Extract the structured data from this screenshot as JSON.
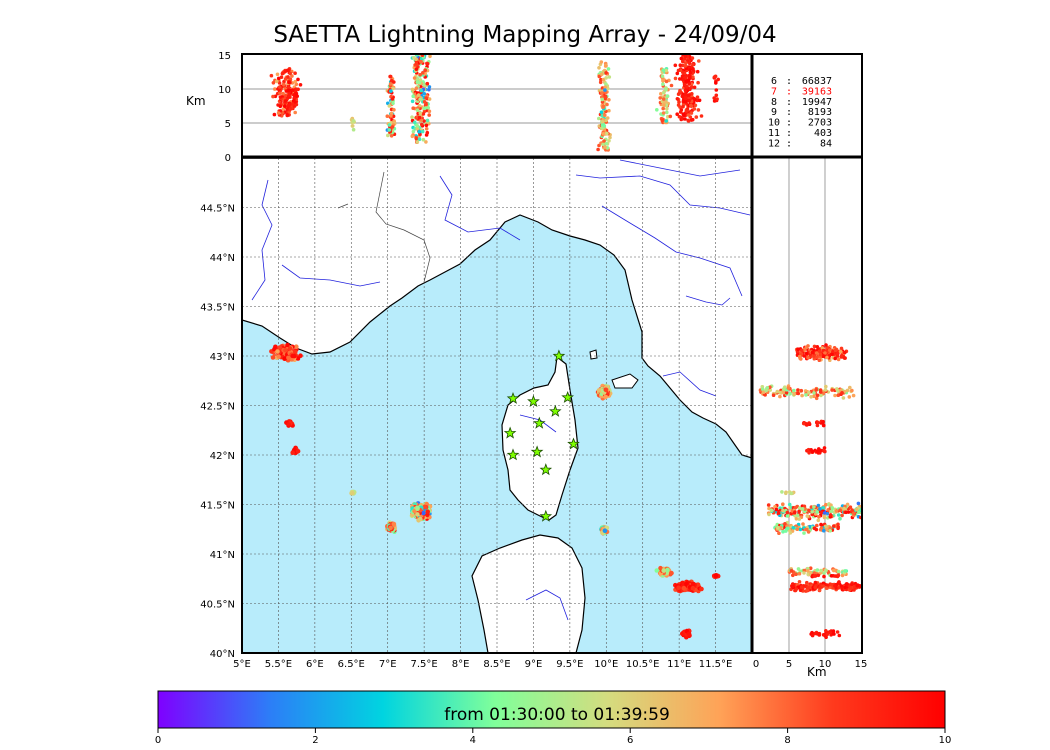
{
  "title": "SAETTA Lightning Mapping Array - 24/09/04",
  "colors": {
    "sea": "#b8ecfb",
    "river": "#2222dd",
    "border": "#444444",
    "coast": "#000000",
    "star": "#7fff00",
    "highlight": "#ff0000"
  },
  "chart_data": {
    "type": "scatter",
    "x_axis": {
      "label": "",
      "lim": [
        5,
        12
      ],
      "ticks": [
        "5°E",
        "5.5°E",
        "6°E",
        "6.5°E",
        "7°E",
        "7.5°E",
        "8°E",
        "8.5°E",
        "9°E",
        "9.5°E",
        "10°E",
        "10.5°E",
        "11°E",
        "11.5°E"
      ]
    },
    "y_axis": {
      "label": "",
      "lim": [
        40,
        45
      ],
      "ticks": [
        "40°N",
        "40.5°N",
        "41°N",
        "41.5°N",
        "42°N",
        "42.5°N",
        "43°N",
        "43.5°N",
        "44°N",
        "44.5°N"
      ]
    },
    "alt_axis": {
      "label": "Km",
      "lim": [
        0,
        15
      ],
      "ticks": [
        "0",
        "5",
        "10",
        "15"
      ]
    },
    "grid": true,
    "stations": [
      {
        "lon": 9.35,
        "lat": 43.0
      },
      {
        "lon": 8.72,
        "lat": 42.57
      },
      {
        "lon": 9.0,
        "lat": 42.54
      },
      {
        "lon": 9.47,
        "lat": 42.58
      },
      {
        "lon": 9.3,
        "lat": 42.44
      },
      {
        "lon": 9.08,
        "lat": 42.32
      },
      {
        "lon": 8.68,
        "lat": 42.22
      },
      {
        "lon": 9.55,
        "lat": 42.11
      },
      {
        "lon": 9.05,
        "lat": 42.03
      },
      {
        "lon": 8.72,
        "lat": 42.0
      },
      {
        "lon": 9.17,
        "lat": 41.85
      },
      {
        "lon": 9.17,
        "lat": 41.38
      }
    ],
    "clusters": [
      {
        "lon": 5.6,
        "lat": 43.03,
        "dlon": 0.22,
        "dlat": 0.1,
        "altmin": 6,
        "altmax": 13,
        "tmin": 6.5,
        "tmax": 10,
        "n": 140
      },
      {
        "lon": 5.66,
        "lat": 42.32,
        "dlon": 0.06,
        "dlat": 0.04,
        "altmin": 7,
        "altmax": 10,
        "tmin": 8.5,
        "tmax": 10,
        "n": 20
      },
      {
        "lon": 5.73,
        "lat": 42.04,
        "dlon": 0.07,
        "dlat": 0.04,
        "altmin": 7,
        "altmax": 10,
        "tmin": 8.5,
        "tmax": 10,
        "n": 20
      },
      {
        "lon": 6.52,
        "lat": 41.62,
        "dlon": 0.03,
        "dlat": 0.03,
        "altmin": 4,
        "altmax": 6,
        "tmin": 5,
        "tmax": 6.5,
        "n": 8
      },
      {
        "lon": 7.05,
        "lat": 41.27,
        "dlon": 0.08,
        "dlat": 0.06,
        "altmin": 3,
        "altmax": 12,
        "tmin": 1.5,
        "tmax": 10,
        "n": 70
      },
      {
        "lon": 7.45,
        "lat": 41.43,
        "dlon": 0.18,
        "dlat": 0.1,
        "altmin": 2,
        "altmax": 15,
        "tmin": 1,
        "tmax": 10,
        "n": 220
      },
      {
        "lon": 9.97,
        "lat": 42.64,
        "dlon": 0.1,
        "dlat": 0.08,
        "altmin": 1,
        "altmax": 14,
        "tmin": 3.5,
        "tmax": 9,
        "n": 110
      },
      {
        "lon": 9.97,
        "lat": 41.24,
        "dlon": 0.06,
        "dlat": 0.06,
        "altmin": 3,
        "altmax": 11,
        "tmin": 1,
        "tmax": 8,
        "n": 30
      },
      {
        "lon": 10.8,
        "lat": 40.82,
        "dlon": 0.12,
        "dlat": 0.05,
        "altmin": 5,
        "altmax": 13,
        "tmin": 3,
        "tmax": 8.5,
        "n": 70
      },
      {
        "lon": 11.12,
        "lat": 40.67,
        "dlon": 0.22,
        "dlat": 0.06,
        "altmin": 5,
        "altmax": 15,
        "tmin": 8,
        "tmax": 10,
        "n": 160
      },
      {
        "lon": 11.1,
        "lat": 40.2,
        "dlon": 0.08,
        "dlat": 0.05,
        "altmin": 8,
        "altmax": 12,
        "tmin": 9,
        "tmax": 10,
        "n": 25
      },
      {
        "lon": 11.5,
        "lat": 40.78,
        "dlon": 0.05,
        "dlat": 0.04,
        "altmin": 8,
        "altmax": 12,
        "tmin": 9,
        "tmax": 10,
        "n": 12
      }
    ],
    "stats": [
      {
        "alt": "6",
        "count": "66837"
      },
      {
        "alt": "7",
        "count": "39163",
        "highlight": true
      },
      {
        "alt": "8",
        "count": "19947"
      },
      {
        "alt": "9",
        "count": "8193"
      },
      {
        "alt": "10",
        "count": "2703"
      },
      {
        "alt": "11",
        "count": "403"
      },
      {
        "alt": "12",
        "count": "84"
      }
    ],
    "colorbar": {
      "label": "from 01:30:00 to 01:39:59",
      "lim": [
        0,
        10
      ],
      "ticks": [
        "0",
        "2",
        "4",
        "6",
        "8",
        "10"
      ],
      "colormap": [
        "#7f00ff",
        "#2c7ef7",
        "#00d4e0",
        "#80ff9a",
        "#d4dc7f",
        "#ffa257",
        "#ff3a1d",
        "#ff0000"
      ]
    }
  }
}
